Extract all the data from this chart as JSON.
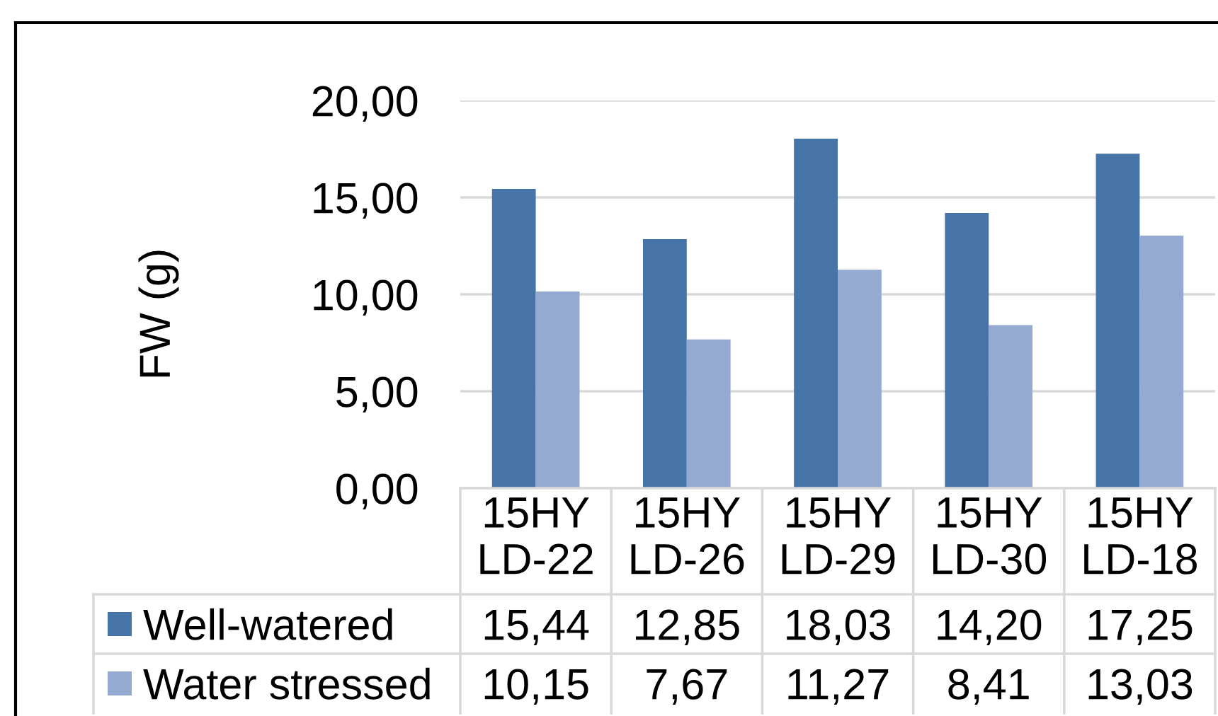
{
  "chart_data": {
    "type": "bar",
    "ylabel": "FW (g)",
    "categories": [
      "15HY\nLD-22",
      "15HY\nLD-26",
      "15HY\nLD-29",
      "15HY\nLD-30",
      "15HY\nLD-18"
    ],
    "series": [
      {
        "name": "Well-watered",
        "color": "#4674a9",
        "values": [
          15.44,
          12.85,
          18.03,
          14.2,
          17.25
        ],
        "value_labels": [
          "15,44",
          "12,85",
          "18,03",
          "14,20",
          "17,25"
        ]
      },
      {
        "name": "Water stressed",
        "color": "#94aad1",
        "values": [
          10.15,
          7.67,
          11.27,
          8.41,
          13.03
        ],
        "value_labels": [
          "10,15",
          "7,67",
          "11,27",
          "8,41",
          "13,03"
        ]
      }
    ],
    "ylim": [
      0,
      20
    ],
    "yticks": [
      {
        "value": 0,
        "label": "0,00"
      },
      {
        "value": 5,
        "label": "5,00"
      },
      {
        "value": 10,
        "label": "10,00"
      },
      {
        "value": 15,
        "label": "15,00"
      },
      {
        "value": 20,
        "label": "20,00"
      }
    ],
    "grid": "y",
    "legend": "bottom"
  }
}
